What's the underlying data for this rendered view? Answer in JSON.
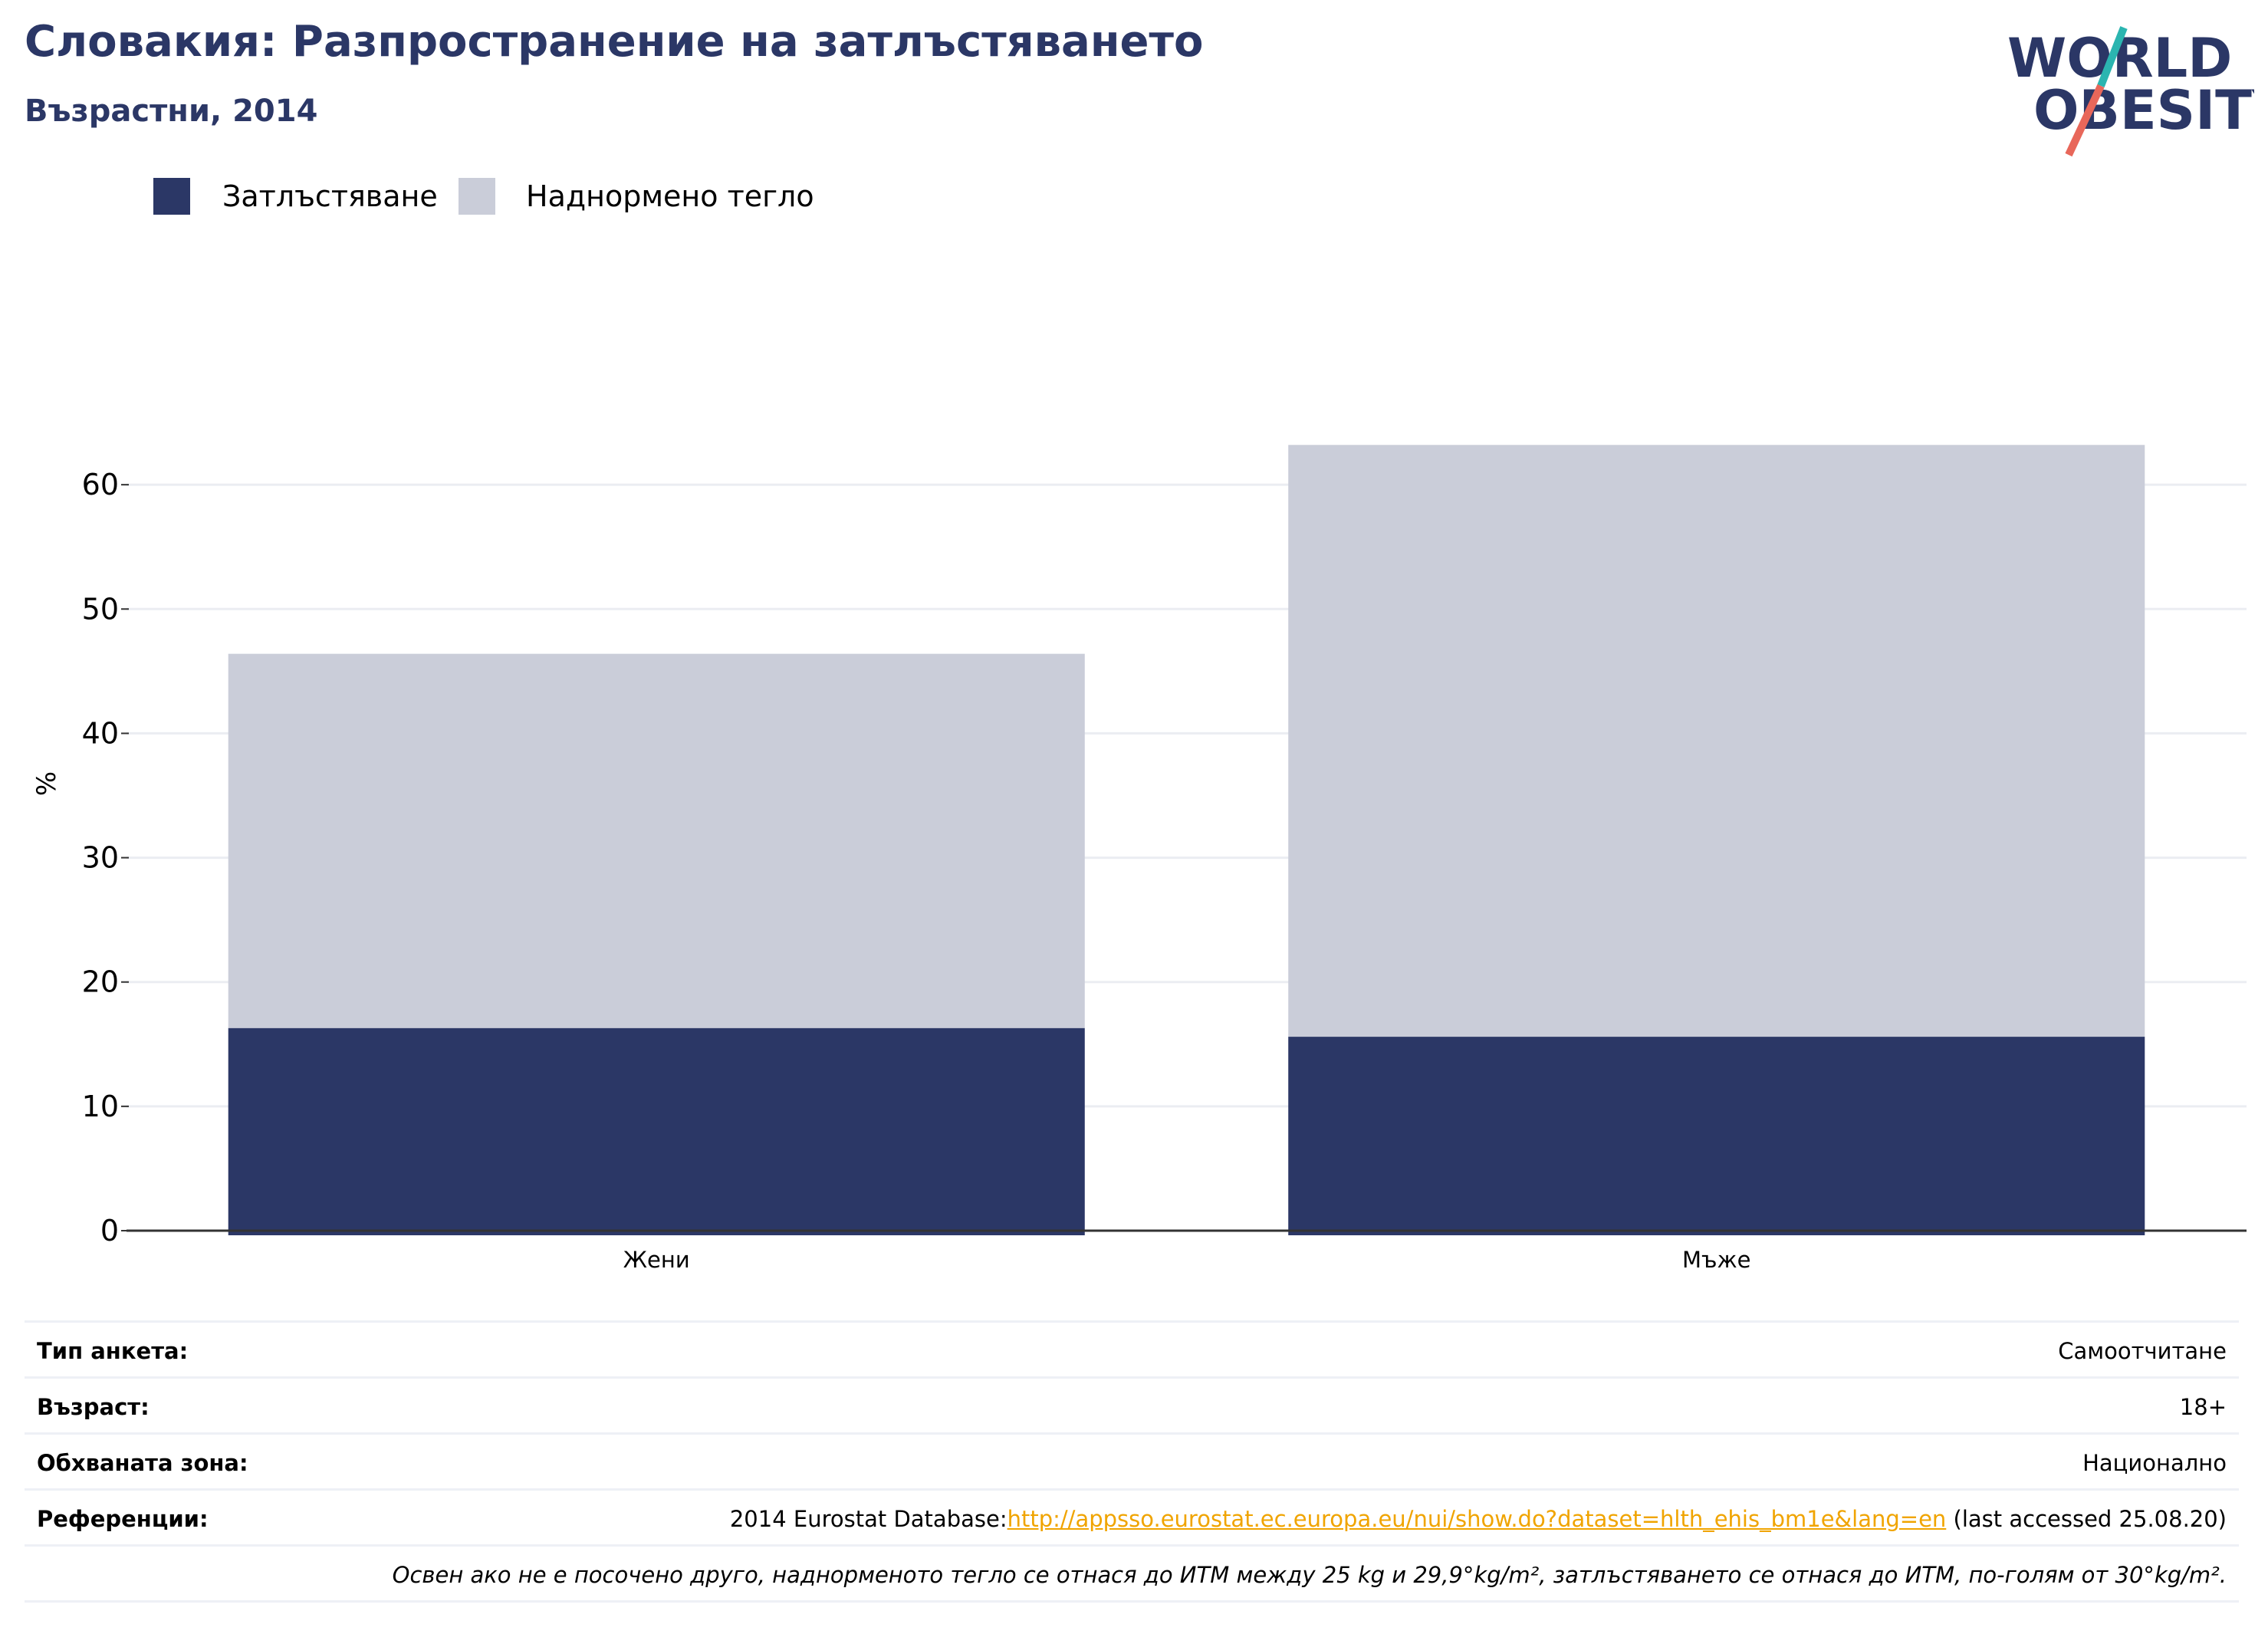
{
  "header": {
    "title": "Словакия: Разпространение на затлъстяването",
    "subtitle": "Възрастни, 2014"
  },
  "logo": {
    "line1": "WORLD",
    "line2": "OBESITY",
    "colors": {
      "text": "#2b3766",
      "slash_top": "#2bb5b0",
      "slash_bottom": "#e8675a"
    }
  },
  "legend": {
    "items": [
      {
        "label": "Затлъстяване",
        "color": "#2b3766"
      },
      {
        "label": "Наднормено тегло",
        "color": "#cacdd9"
      }
    ]
  },
  "chart_data": {
    "type": "bar",
    "stacked": true,
    "categories": [
      "Жени",
      "Мъже"
    ],
    "series": [
      {
        "name": "Затлъстяване",
        "values": [
          16.3,
          15.6
        ],
        "color": "#2b3766"
      },
      {
        "name": "Наднормено тегло",
        "values": [
          30.1,
          47.6
        ],
        "color": "#cacdd9"
      }
    ],
    "ylabel": "%",
    "ylim": [
      0,
      70
    ],
    "yticks": [
      0,
      10,
      20,
      30,
      40,
      50,
      60
    ],
    "grid": true,
    "legend_position": "top-left"
  },
  "info": {
    "survey_type": {
      "label": "Тип анкета:",
      "value": "Самоотчитане"
    },
    "age": {
      "label": "Възраст:",
      "value": "18+"
    },
    "area": {
      "label": "Обхваната зона:",
      "value": "Национално"
    },
    "references": {
      "label": "Референции:",
      "prefix": "2014 Eurostat Database:",
      "link": "http://appsso.eurostat.ec.europa.eu/nui/show.do?dataset=hlth_ehis_bm1e&lang=en",
      "suffix": " (last accessed 25.08.20)"
    },
    "note": "Освен ако не е посочено друго, наднорменото тегло се отнася до ИТМ между 25 kg и 29,9°kg/m², затлъстяването се отнася до ИТМ, по-голям от 30°kg/m²."
  }
}
